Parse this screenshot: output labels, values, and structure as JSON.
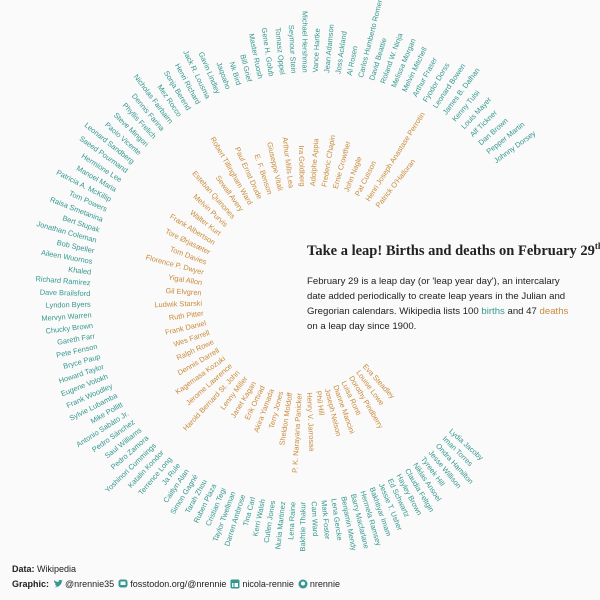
{
  "header": {
    "title": "Take a leap! Births and deaths on February 29",
    "title_sup": "th",
    "description": {
      "before": "February 29 is a leap day (or 'leap year day'), an intercalary date added periodically to create leap years in the Julian and Gregorian calendars. Wikipedia lists 100 ",
      "births_word": "births",
      "middle": " and 47 ",
      "deaths_word": "deaths",
      "after": " on a leap day since 1900."
    }
  },
  "births": [
    "Johnny Dorsey",
    "Pepper Martin",
    "Dan Brown",
    "Alf Tickner",
    "Louis Mayer",
    "Kenny Tulsi",
    "James B. Dalhan",
    "Leonard Bowen",
    "Fyodor Dorss",
    "Arthur Fraser",
    "Melvin Mitchell",
    "Melissa Morgan",
    "Roland W. Ninja",
    "David Beattie",
    "Carlos Humberto Romero",
    "Al Rosen",
    "Joss Ackland",
    "Jean Adamson",
    "Vance Hartke",
    "Michael Hershman",
    "Seymour Stein",
    "Tomasz Oppel",
    "Gene H. Golub",
    "Master Ruosh",
    "Bill Grief",
    "Nk Bird",
    "Jaqoaho",
    "Gavin Lindley",
    "Jack R. Lousma",
    "Henri Richard",
    "Sonja Berend",
    "Mez Rocco",
    "Nicholas Fairbairn",
    "Dennis Farina",
    "Phyllis Frelich",
    "Steve Mingori",
    "Paolo Vicente",
    "Leonard Sandberg",
    "Saeed Pourmand",
    "Hermione Lee",
    "Manoel Maria",
    "Patricia A. McKillip",
    "Tom Powers",
    "Raisa Smetanina",
    "Bert Stupak",
    "Jonathan Coleman",
    "Bob Speller",
    "Aileen Wuornos",
    "Khaled",
    "Richard Ramirez",
    "Dave Brailsford",
    "Lyndon Byers",
    "Mervyn Warren",
    "Chucky Brown",
    "Gareth Farr",
    "Pete Fenson",
    "Bryce Paup",
    "Howard Taylor",
    "Eugene Volokh",
    "Frank Woodley",
    "Sylvie Lubamba",
    "Mike Pollitt",
    "Antonio Sabàto Jr.",
    "Pedro Sánchez",
    "Saul Williams",
    "Pedro Zamora",
    "Yoshinori Cummings",
    "Katalin Kondor",
    "Terrence Long",
    "Ja Rule",
    "Caitlyn Alan",
    "Simon Gagné",
    "Tarah Zhou",
    "Ruben Plaza",
    "Cristian Tegi",
    "Taylor Twellman",
    "Darren Ambrose",
    "Tina Carl",
    "Kerri Walsh",
    "Cullen Jones",
    "Nuria Martinez",
    "Lena Raine",
    "Bakhtie Thakur",
    "Cam Ward",
    "Mark Foster",
    "Lena Gercke",
    "Benjamin Mendy",
    "Barry Macfarlane",
    "Hermela Ramsey",
    "Bakhtiyar Imam",
    "Jessie T. Usher",
    "Ed Schwartz",
    "Hayley Brown",
    "Claudia Feltgin",
    "Niklas Ansoel",
    "Tyreek Hill",
    "Jesse Willison",
    "Ondra Hamilton",
    "Iman Torres",
    "Lydia Jacoby"
  ],
  "deaths": [
    "Patrick O'Halloran",
    "Henri Joseph Anastase Perrotin",
    "Pat Cusson",
    "John Nagle",
    "Ernie Crowther",
    "Frederic Chapin",
    "Adolphe Appia",
    "Ira Goldberg",
    "Arthur Mills Lea",
    "Giuseppe Vitali",
    "E. F. Benson",
    "Paul Ernst Drude",
    "Robert Tillingham Ward",
    "Sewall Avery",
    "Esteban Quinones",
    "Melvin Purvis",
    "Walter Kurt",
    "Frank Albertson",
    "Tore Ørjasæter",
    "Tom Davies",
    "Florence P. Dwyer",
    "Yigal Allon",
    "Gil Elvgren",
    "Ludwik Starski",
    "Ruth Pitter",
    "Frank Daniel",
    "Wes Farrell",
    "Ralph Rowe",
    "Dennis Darrell",
    "Kagemasa Kozuki",
    "Jerome Lawrence",
    "Harold Bernard St. John",
    "Lenny Miller",
    "Janet Kagan",
    "Erik Ortvad",
    "Akira Yamada",
    "Terry Jones",
    "Sheldon Moldoff",
    "P. K. Narayana Panicker",
    "Henry V. Jarrosaa",
    "Phil Hill",
    "Joseph Nelson",
    "Dianne Mancini",
    "Luisa Ronti",
    "Dorothy Pindberry",
    "Louise Lowe",
    "Eva Steadley"
  ],
  "footer": {
    "data_label": "Data:",
    "data_source": "Wikipedia",
    "graphic_label": "Graphic:",
    "handles": [
      "@nrennie35",
      "fosstodon.org/@nrennie",
      "nicola-rennie",
      "nrennie"
    ]
  }
}
